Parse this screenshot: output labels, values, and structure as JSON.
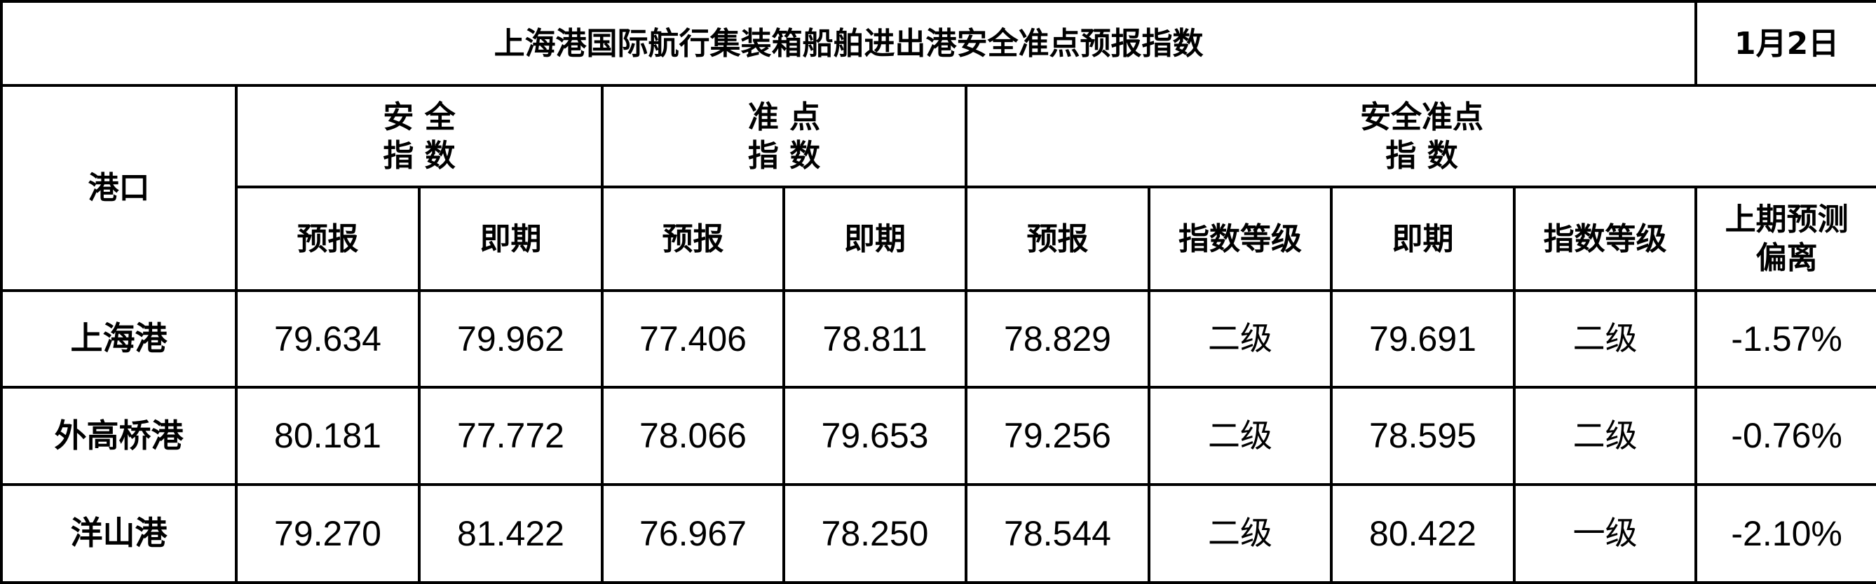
{
  "title": "上海港国际航行集装箱船舶进出港安全准点预报指数",
  "date": "1月2日",
  "headers": {
    "port": "港口",
    "safety_line1": "安 全",
    "safety_line2": "指 数",
    "punctual_line1": "准 点",
    "punctual_line2": "指 数",
    "combined_line1": "安全准点",
    "combined_line2": "指 数",
    "forecast": "预报",
    "current": "即期",
    "level": "指数等级",
    "deviation_line1": "上期预测",
    "deviation_line2": "偏离"
  },
  "rows": [
    {
      "port": "上海港",
      "safety_forecast": "79.634",
      "safety_current": "79.962",
      "punctual_forecast": "77.406",
      "punctual_current": "78.811",
      "combined_forecast": "78.829",
      "forecast_level": "二级",
      "combined_current": "79.691",
      "current_level": "二级",
      "deviation": "-1.57%"
    },
    {
      "port": "外高桥港",
      "safety_forecast": "80.181",
      "safety_current": "77.772",
      "punctual_forecast": "78.066",
      "punctual_current": "79.653",
      "combined_forecast": "79.256",
      "forecast_level": "二级",
      "combined_current": "78.595",
      "current_level": "二级",
      "deviation": "-0.76%"
    },
    {
      "port": "洋山港",
      "safety_forecast": "79.270",
      "safety_current": "81.422",
      "punctual_forecast": "76.967",
      "punctual_current": "78.250",
      "combined_forecast": "78.544",
      "forecast_level": "二级",
      "combined_current": "80.422",
      "current_level": "一级",
      "deviation": "-2.10%"
    }
  ]
}
